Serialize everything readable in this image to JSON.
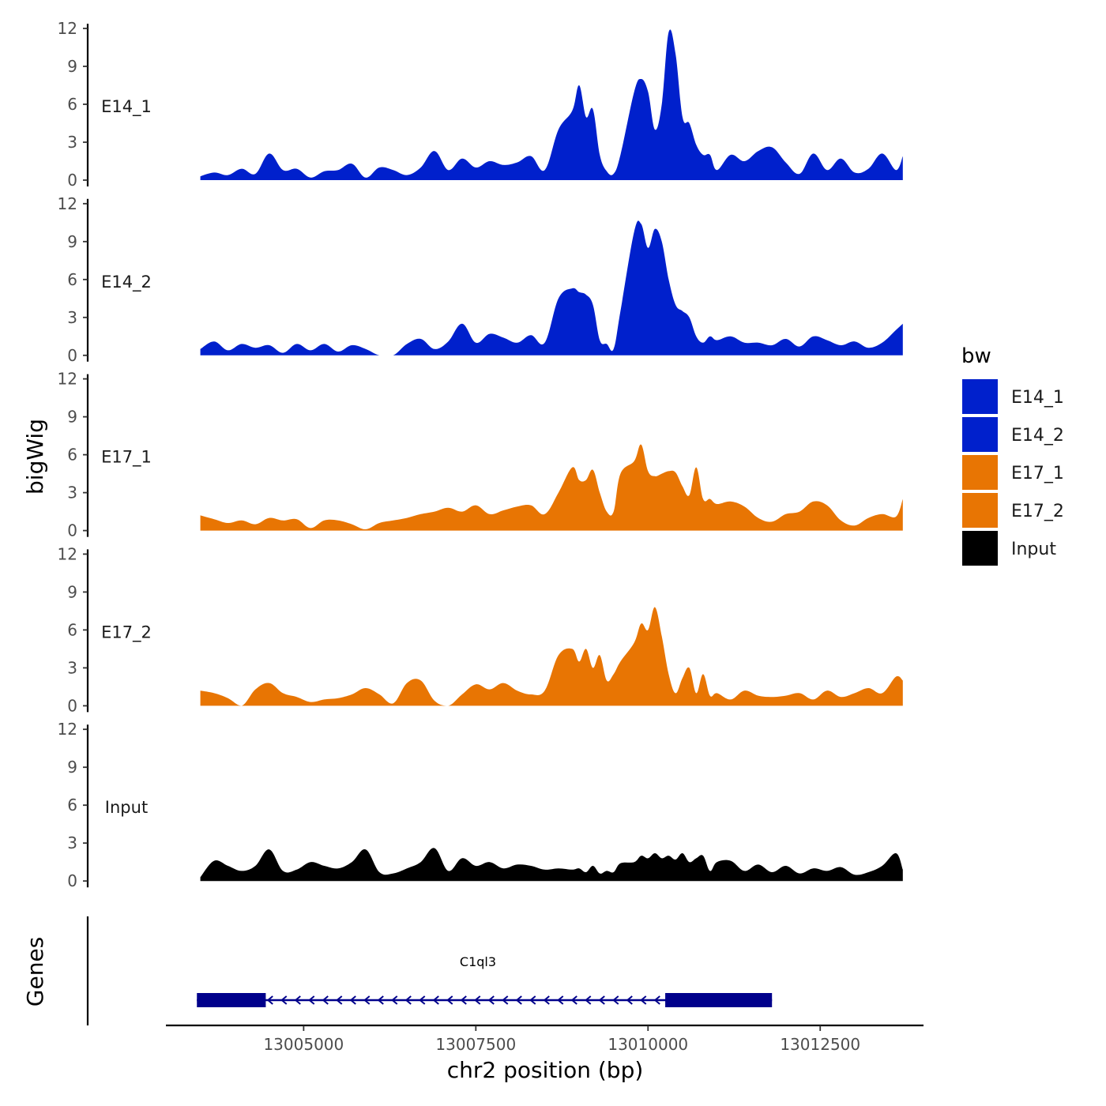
{
  "chart_data": {
    "type": "area",
    "y_axis_title": "bigWig",
    "x_axis_title": "chr2 position (bp)",
    "genes_axis_title": "Genes",
    "xlim": [
      13003000,
      13014000
    ],
    "ylim": [
      0,
      12
    ],
    "y_ticks": [
      "0",
      "3",
      "6",
      "9",
      "12"
    ],
    "x_ticks": [
      {
        "value": 13005000,
        "label": "13005000"
      },
      {
        "value": 13007500,
        "label": "13007500"
      },
      {
        "value": 13010000,
        "label": "13010000"
      },
      {
        "value": 13012500,
        "label": "13012500"
      }
    ],
    "legend": {
      "title": "bw",
      "items": [
        {
          "label": "E14_1",
          "color": "#0020CC"
        },
        {
          "label": "E14_2",
          "color": "#0020CC"
        },
        {
          "label": "E17_1",
          "color": "#E87503"
        },
        {
          "label": "E17_2",
          "color": "#E87503"
        },
        {
          "label": "Input",
          "color": "#000000"
        }
      ]
    },
    "series": [
      {
        "name": "E14_1",
        "color": "#0020CC",
        "x": [
          13003500,
          13003700,
          13003900,
          13004100,
          13004300,
          13004500,
          13004700,
          13004900,
          13005100,
          13005300,
          13005500,
          13005700,
          13005900,
          13006100,
          13006300,
          13006500,
          13006700,
          13006900,
          13007100,
          13007300,
          13007500,
          13007700,
          13007900,
          13008100,
          13008300,
          13008500,
          13008700,
          13008900,
          13009000,
          13009100,
          13009200,
          13009300,
          13009400,
          13009500,
          13009600,
          13009800,
          13009900,
          13010000,
          13010100,
          13010200,
          13010300,
          13010400,
          13010500,
          13010600,
          13010700,
          13010800,
          13010900,
          13011000,
          13011200,
          13011400,
          13011600,
          13011800,
          13012000,
          13012200,
          13012400,
          13012600,
          13012800,
          13013000,
          13013200,
          13013400,
          13013600,
          13013700
        ],
        "values": [
          0.3,
          0.6,
          0.4,
          0.9,
          0.5,
          2.1,
          0.8,
          0.9,
          0.2,
          0.7,
          0.8,
          1.3,
          0.2,
          1.0,
          0.8,
          0.4,
          1.0,
          2.3,
          0.8,
          1.7,
          1.0,
          1.5,
          1.2,
          1.4,
          1.9,
          0.8,
          4.0,
          5.5,
          7.5,
          5.0,
          5.6,
          2.0,
          0.7,
          0.5,
          2.0,
          7.0,
          8.0,
          7.0,
          4.0,
          6.0,
          11.7,
          10.0,
          5.0,
          4.5,
          2.8,
          2.0,
          2.0,
          0.8,
          2.0,
          1.5,
          2.3,
          2.6,
          1.4,
          0.5,
          2.1,
          0.8,
          1.7,
          0.6,
          0.9,
          2.1,
          0.8,
          1.9
        ]
      },
      {
        "name": "E14_2",
        "color": "#0020CC",
        "x": [
          13003500,
          13003700,
          13003900,
          13004100,
          13004300,
          13004500,
          13004700,
          13004900,
          13005100,
          13005300,
          13005500,
          13005700,
          13005900,
          13006100,
          13006300,
          13006500,
          13006700,
          13006900,
          13007100,
          13007300,
          13007500,
          13007700,
          13007900,
          13008100,
          13008300,
          13008500,
          13008700,
          13008900,
          13009000,
          13009100,
          13009200,
          13009300,
          13009400,
          13009500,
          13009600,
          13009800,
          13009900,
          13010000,
          13010100,
          13010200,
          13010300,
          13010400,
          13010500,
          13010600,
          13010700,
          13010800,
          13010900,
          13011000,
          13011200,
          13011400,
          13011600,
          13011800,
          13012000,
          13012200,
          13012400,
          13012600,
          13012800,
          13013000,
          13013200,
          13013400,
          13013600,
          13013700
        ],
        "values": [
          0.5,
          1.1,
          0.4,
          0.9,
          0.6,
          0.8,
          0.2,
          0.9,
          0.4,
          0.9,
          0.3,
          0.8,
          0.5,
          0.0,
          0.0,
          0.9,
          1.3,
          0.5,
          1.1,
          2.5,
          1.0,
          1.7,
          1.4,
          1.0,
          1.6,
          1.0,
          4.5,
          5.3,
          5.0,
          4.8,
          4.0,
          1.2,
          0.9,
          0.5,
          3.5,
          9.8,
          10.4,
          8.5,
          10.0,
          9.0,
          6.0,
          4.0,
          3.5,
          3.0,
          1.5,
          1.0,
          1.5,
          1.2,
          1.5,
          1.0,
          1.0,
          0.8,
          1.3,
          0.7,
          1.5,
          1.2,
          0.8,
          1.1,
          0.6,
          1.0,
          2.0,
          2.5
        ]
      },
      {
        "name": "E17_1",
        "color": "#E87503",
        "x": [
          13003500,
          13003700,
          13003900,
          13004100,
          13004300,
          13004500,
          13004700,
          13004900,
          13005100,
          13005300,
          13005500,
          13005700,
          13005900,
          13006100,
          13006300,
          13006500,
          13006700,
          13006900,
          13007100,
          13007300,
          13007500,
          13007700,
          13007900,
          13008100,
          13008300,
          13008500,
          13008700,
          13008900,
          13009000,
          13009100,
          13009200,
          13009300,
          13009400,
          13009500,
          13009600,
          13009800,
          13009900,
          13010000,
          13010100,
          13010200,
          13010300,
          13010400,
          13010500,
          13010600,
          13010700,
          13010800,
          13010900,
          13011000,
          13011200,
          13011400,
          13011600,
          13011800,
          13012000,
          13012200,
          13012400,
          13012600,
          13012800,
          13013000,
          13013200,
          13013400,
          13013600,
          13013700
        ],
        "values": [
          1.2,
          0.9,
          0.6,
          0.8,
          0.5,
          1.0,
          0.8,
          0.9,
          0.2,
          0.8,
          0.8,
          0.5,
          0.1,
          0.6,
          0.8,
          1.0,
          1.3,
          1.5,
          1.8,
          1.5,
          2.0,
          1.3,
          1.6,
          1.9,
          2.0,
          1.3,
          3.0,
          5.0,
          4.0,
          4.0,
          4.8,
          3.0,
          1.5,
          1.5,
          4.5,
          5.5,
          6.8,
          4.7,
          4.3,
          4.5,
          4.7,
          4.6,
          3.5,
          2.8,
          5.0,
          2.5,
          2.5,
          2.1,
          2.3,
          1.9,
          1.0,
          0.7,
          1.3,
          1.5,
          2.3,
          2.0,
          0.8,
          0.4,
          1.0,
          1.3,
          1.1,
          2.5
        ]
      },
      {
        "name": "E17_2",
        "color": "#E87503",
        "x": [
          13003500,
          13003700,
          13003900,
          13004100,
          13004300,
          13004500,
          13004700,
          13004900,
          13005100,
          13005300,
          13005500,
          13005700,
          13005900,
          13006100,
          13006300,
          13006500,
          13006700,
          13006900,
          13007100,
          13007300,
          13007500,
          13007700,
          13007900,
          13008100,
          13008300,
          13008500,
          13008700,
          13008900,
          13009000,
          13009100,
          13009200,
          13009300,
          13009400,
          13009500,
          13009600,
          13009800,
          13009900,
          13010000,
          13010100,
          13010200,
          13010300,
          13010400,
          13010500,
          13010600,
          13010700,
          13010800,
          13010900,
          13011000,
          13011200,
          13011400,
          13011600,
          13011800,
          13012000,
          13012200,
          13012400,
          13012600,
          13012800,
          13013000,
          13013200,
          13013400,
          13013600,
          13013700
        ],
        "values": [
          1.2,
          1.0,
          0.6,
          0.0,
          1.3,
          1.8,
          1.0,
          0.7,
          0.3,
          0.5,
          0.6,
          0.9,
          1.4,
          0.9,
          0.2,
          1.8,
          2.0,
          0.4,
          0.0,
          0.9,
          1.7,
          1.3,
          1.8,
          1.2,
          0.9,
          1.2,
          4.0,
          4.5,
          3.5,
          4.5,
          3.0,
          4.0,
          2.0,
          2.5,
          3.5,
          5.0,
          6.5,
          6.0,
          7.8,
          5.5,
          2.5,
          1.0,
          2.2,
          3.0,
          1.0,
          2.5,
          0.8,
          1.0,
          0.5,
          1.2,
          0.8,
          0.7,
          0.8,
          1.0,
          0.5,
          1.2,
          0.7,
          1.0,
          1.4,
          1.0,
          2.3,
          2.0
        ]
      },
      {
        "name": "Input",
        "color": "#000000",
        "x": [
          13003500,
          13003700,
          13003900,
          13004100,
          13004300,
          13004500,
          13004700,
          13004900,
          13005100,
          13005300,
          13005500,
          13005700,
          13005900,
          13006100,
          13006300,
          13006500,
          13006700,
          13006900,
          13007100,
          13007300,
          13007500,
          13007700,
          13007900,
          13008100,
          13008300,
          13008500,
          13008700,
          13008900,
          13009000,
          13009100,
          13009200,
          13009300,
          13009400,
          13009500,
          13009600,
          13009800,
          13009900,
          13010000,
          13010100,
          13010200,
          13010300,
          13010400,
          13010500,
          13010600,
          13010700,
          13010800,
          13010900,
          13011000,
          13011200,
          13011400,
          13011600,
          13011800,
          13012000,
          13012200,
          13012400,
          13012600,
          13012800,
          13013000,
          13013200,
          13013400,
          13013600,
          13013700
        ],
        "values": [
          0.3,
          1.6,
          1.2,
          0.8,
          1.2,
          2.5,
          0.8,
          0.9,
          1.5,
          1.2,
          1.0,
          1.5,
          2.5,
          0.7,
          0.6,
          1.0,
          1.5,
          2.6,
          0.8,
          1.8,
          1.2,
          1.5,
          1.0,
          1.3,
          1.2,
          0.9,
          1.0,
          0.9,
          1.0,
          0.7,
          1.2,
          0.6,
          0.8,
          0.7,
          1.4,
          1.5,
          2.0,
          1.8,
          2.2,
          1.8,
          2.0,
          1.7,
          2.2,
          1.5,
          1.8,
          2.0,
          0.8,
          1.5,
          1.6,
          0.8,
          1.3,
          0.7,
          1.2,
          0.6,
          1.0,
          0.8,
          1.1,
          0.5,
          0.7,
          1.2,
          2.2,
          0.9
        ]
      }
    ],
    "genes": [
      {
        "name": "C1ql3",
        "strand": "-",
        "start": 13003450,
        "end": 13011800,
        "exons": [
          [
            13003450,
            13004450
          ],
          [
            13010250,
            13011800
          ]
        ]
      }
    ]
  }
}
